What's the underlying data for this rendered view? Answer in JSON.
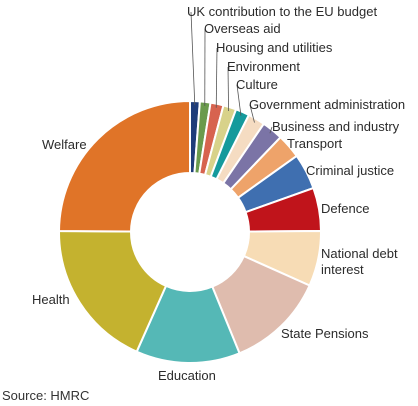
{
  "chart_data": {
    "type": "pie",
    "donut": true,
    "start_angle_deg": 0,
    "direction": "clockwise",
    "legend": "none",
    "slices": [
      {
        "label": "UK contribution to the EU budget",
        "value": 1.2,
        "color": "#1f3d7a"
      },
      {
        "label": "Overseas aid",
        "value": 1.3,
        "color": "#6a9a4c"
      },
      {
        "label": "Housing and utilities",
        "value": 1.6,
        "color": "#d7634f"
      },
      {
        "label": "Environment",
        "value": 1.6,
        "color": "#d8d28a"
      },
      {
        "label": "Culture",
        "value": 1.7,
        "color": "#159a9c"
      },
      {
        "label": "Government administration",
        "value": 2.1,
        "color": "#f5dcc2"
      },
      {
        "label": "Business and industry",
        "value": 2.6,
        "color": "#7b74a6"
      },
      {
        "label": "Transport",
        "value": 3.0,
        "color": "#eea36a"
      },
      {
        "label": "Criminal justice",
        "value": 4.4,
        "color": "#3f6fb0"
      },
      {
        "label": "Defence",
        "value": 5.3,
        "color": "#c0141b"
      },
      {
        "label": "National debt interest",
        "value": 6.8,
        "color": "#f7dcb5"
      },
      {
        "label": "State Pensions",
        "value": 12.1,
        "color": "#dfbcae"
      },
      {
        "label": "Education",
        "value": 12.8,
        "color": "#55b8b6"
      },
      {
        "label": "Health",
        "value": 18.4,
        "color": "#c4b22f"
      },
      {
        "label": "Welfare",
        "value": 24.8,
        "color": "#e07428"
      }
    ]
  },
  "footer": {
    "source": "Source: HMRC"
  }
}
